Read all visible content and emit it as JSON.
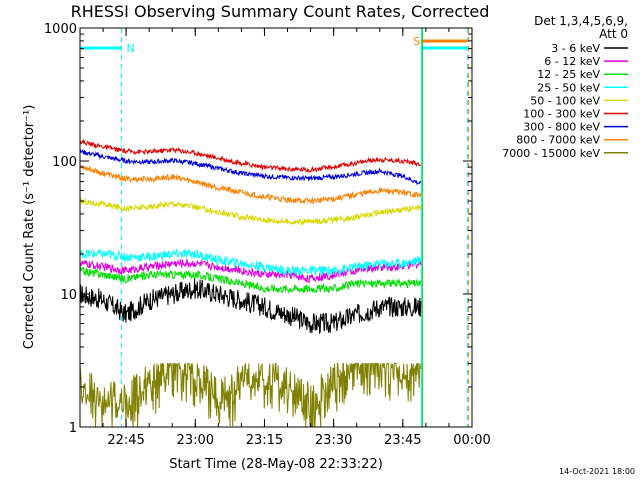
{
  "chart_data": {
    "type": "line",
    "title": "RHESSI Observing Summary Count Rates, Corrected",
    "xlabel": "Start Time (28-May-08 22:33:22)",
    "ylabel": "Corrected Count Rate (s⁻¹ detector⁻¹)",
    "yscale": "log",
    "ylim": [
      1,
      1000
    ],
    "xlim_minutes": [
      -10,
      75
    ],
    "y_tick_labels": [
      {
        "value": 1,
        "label": "1"
      },
      {
        "value": 10,
        "label": "10"
      },
      {
        "value": 100,
        "label": "100"
      },
      {
        "value": 1000,
        "label": "1000"
      }
    ],
    "x_tick_labels": [
      {
        "minute": 0,
        "label": "22:45"
      },
      {
        "minute": 15,
        "label": "23:00"
      },
      {
        "minute": 30,
        "label": "23:15"
      },
      {
        "minute": 45,
        "label": "23:30"
      },
      {
        "minute": 60,
        "label": "23:45"
      },
      {
        "minute": 75,
        "label": "00:00"
      }
    ],
    "legend_header": [
      "Det 1,3,4,5,6,9,",
      "Att 0"
    ],
    "legend_placement": "right",
    "series": [
      {
        "name": "3 - 6 keV",
        "color": "#000000",
        "x": [
          -10,
          -5,
          0,
          5,
          10,
          15,
          20,
          25,
          30,
          35,
          40,
          45,
          50,
          55,
          60,
          64
        ],
        "values": [
          10,
          9,
          7,
          9,
          10,
          11,
          10,
          9,
          8,
          7,
          6,
          6,
          7,
          8,
          8,
          8
        ]
      },
      {
        "name": "6 - 12 keV",
        "color": "#e000e0",
        "x": [
          -10,
          -5,
          0,
          5,
          10,
          15,
          20,
          25,
          30,
          35,
          40,
          45,
          50,
          55,
          60,
          64
        ],
        "values": [
          17,
          16,
          15,
          16,
          17,
          17,
          16,
          15,
          14,
          14,
          13,
          14,
          15,
          16,
          16,
          17
        ]
      },
      {
        "name": "12 - 25 keV",
        "color": "#00e000",
        "x": [
          -10,
          -5,
          0,
          5,
          10,
          15,
          20,
          25,
          30,
          35,
          40,
          45,
          50,
          55,
          60,
          64
        ],
        "values": [
          15,
          14,
          13,
          14,
          14,
          14,
          13,
          12,
          11,
          11,
          11,
          11,
          12,
          12,
          12,
          12
        ]
      },
      {
        "name": "25 - 50 keV",
        "color": "#00ffff",
        "x": [
          -10,
          -5,
          0,
          5,
          10,
          15,
          20,
          25,
          30,
          35,
          40,
          45,
          50,
          55,
          60,
          64
        ],
        "values": [
          20,
          20,
          19,
          19,
          20,
          20,
          18,
          17,
          16,
          15,
          15,
          15,
          16,
          17,
          17,
          18
        ]
      },
      {
        "name": "50 - 100 keV",
        "color": "#d8d800",
        "x": [
          -10,
          -5,
          0,
          5,
          10,
          15,
          20,
          25,
          30,
          35,
          40,
          45,
          50,
          55,
          60,
          64
        ],
        "values": [
          50,
          47,
          44,
          45,
          48,
          45,
          41,
          38,
          36,
          35,
          35,
          36,
          38,
          41,
          43,
          45
        ]
      },
      {
        "name": "100 - 300 keV",
        "color": "#e00000",
        "x": [
          -10,
          -5,
          0,
          5,
          10,
          15,
          20,
          25,
          30,
          35,
          40,
          45,
          50,
          55,
          60,
          64
        ],
        "values": [
          140,
          128,
          118,
          117,
          122,
          115,
          105,
          96,
          90,
          87,
          86,
          90,
          97,
          103,
          100,
          95
        ]
      },
      {
        "name": "300 - 800 keV",
        "color": "#0000e0",
        "x": [
          -10,
          -5,
          0,
          5,
          10,
          15,
          20,
          25,
          30,
          35,
          40,
          45,
          50,
          55,
          60,
          64
        ],
        "values": [
          118,
          108,
          100,
          98,
          101,
          96,
          88,
          81,
          77,
          75,
          74,
          76,
          80,
          84,
          77,
          67
        ]
      },
      {
        "name": "800 - 7000 keV",
        "color": "#ff8000",
        "x": [
          -10,
          -5,
          0,
          5,
          10,
          15,
          20,
          25,
          30,
          35,
          40,
          45,
          50,
          55,
          60,
          64
        ],
        "values": [
          92,
          81,
          73,
          73,
          76,
          70,
          63,
          58,
          54,
          51,
          50,
          52,
          56,
          60,
          58,
          55
        ]
      },
      {
        "name": "7000 - 15000 keV",
        "color": "#808000",
        "x": [
          -10,
          -5,
          0,
          5,
          10,
          15,
          20,
          25,
          30,
          35,
          40,
          45,
          50,
          55,
          60,
          64
        ],
        "values": [
          2,
          1.5,
          1.5,
          2,
          3,
          2.5,
          1.5,
          2,
          2.5,
          2,
          1.5,
          2,
          3,
          3,
          2.5,
          3
        ]
      }
    ],
    "flags": {
      "night_label": "N",
      "saa_label": "S",
      "night_color": "#00ffff",
      "saa_color": "#ff8000",
      "night_intervals": [
        [
          -10,
          -1
        ],
        [
          64,
          74
        ]
      ],
      "saa_intervals": [
        [
          64,
          74
        ]
      ]
    },
    "footer_date": "14-Oct-2021 18:00"
  }
}
